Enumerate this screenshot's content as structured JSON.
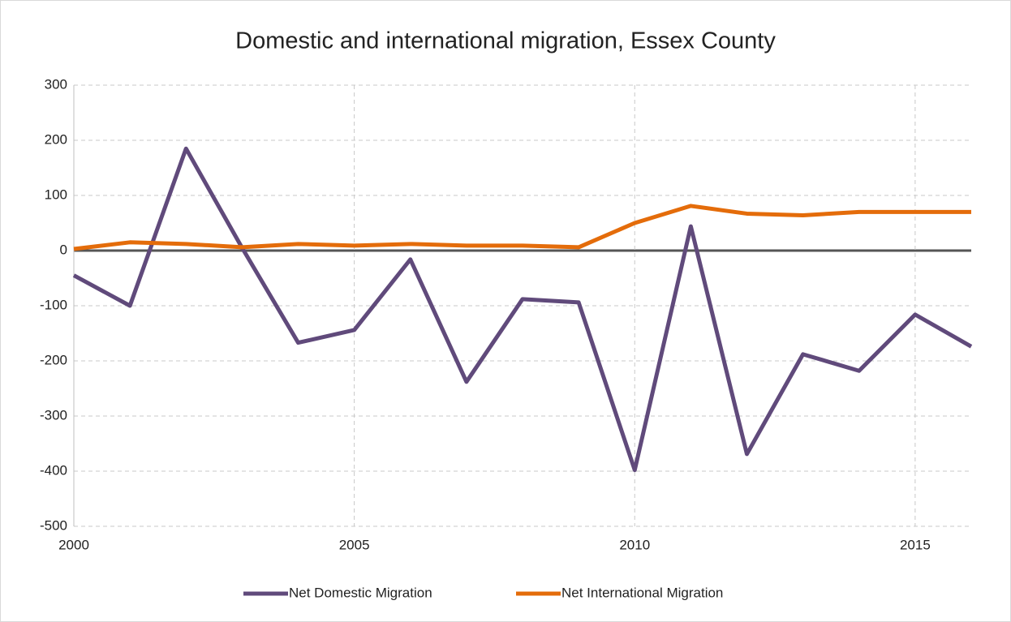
{
  "chart_data": {
    "type": "line",
    "title": "Domestic and international migration, Essex County",
    "x": [
      2000,
      2001,
      2002,
      2003,
      2004,
      2005,
      2006,
      2007,
      2008,
      2009,
      2010,
      2011,
      2012,
      2013,
      2014,
      2015,
      2016
    ],
    "series": [
      {
        "name": "Net Domestic Migration",
        "color": "#604a7b",
        "values": [
          -45,
          -100,
          185,
          5,
          -167,
          -144,
          -16,
          -238,
          -88,
          -94,
          -398,
          44,
          -369,
          -188,
          -218,
          -116,
          -174
        ]
      },
      {
        "name": "Net International Migration",
        "color": "#e46c0a",
        "values": [
          3,
          15,
          12,
          6,
          12,
          9,
          12,
          9,
          9,
          6,
          50,
          81,
          67,
          64,
          70,
          70,
          70
        ]
      }
    ],
    "xlim": [
      2000,
      2016
    ],
    "xticks": [
      2000,
      2005,
      2010,
      2015
    ],
    "ylim": [
      -500,
      300
    ],
    "yticks": [
      -500,
      -400,
      -300,
      -200,
      -100,
      0,
      100,
      200,
      300
    ],
    "grid": true,
    "legend": "bottom"
  }
}
